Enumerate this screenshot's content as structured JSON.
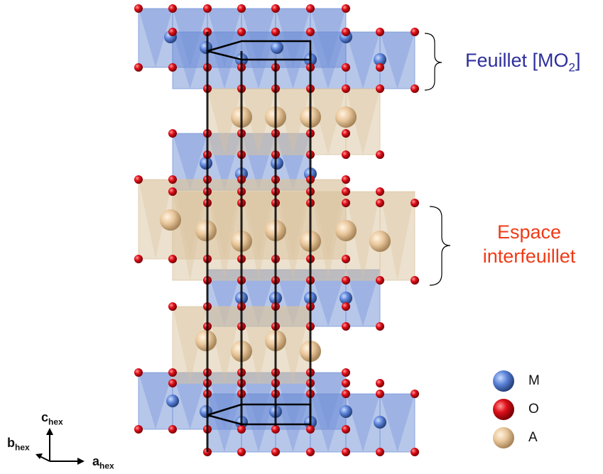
{
  "labels": {
    "sheet_prefix": "Feuillet [MO",
    "sheet_sub": "2",
    "sheet_suffix": "]",
    "interlayer_line1": "Espace",
    "interlayer_line2": "interfeuillet"
  },
  "legend": [
    {
      "symbol": "M",
      "color": "#5b82d8"
    },
    {
      "symbol": "O",
      "color": "#e0101a"
    },
    {
      "symbol": "A",
      "color": "#e9c79c"
    }
  ],
  "axes": {
    "c": {
      "base": "c",
      "sub": "hex"
    },
    "b": {
      "base": "b",
      "sub": "hex"
    },
    "a": {
      "base": "a",
      "sub": "hex"
    }
  },
  "colors": {
    "mo2_polyhedra": "#6f8fd6",
    "a_polyhedra": "#d9c39e",
    "oxygen": "#e0101a",
    "metal": "#5b82d8",
    "alkali": "#e9c79c",
    "cell_edges": "#000000"
  }
}
